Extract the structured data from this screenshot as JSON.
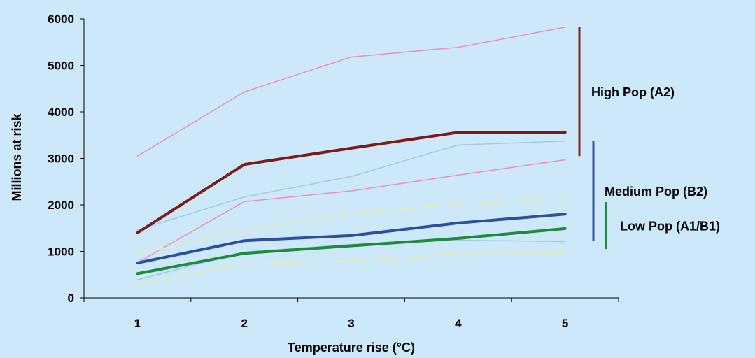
{
  "chart_data": {
    "type": "line",
    "xlabel": "Temperature rise (°C)",
    "ylabel": "Millions at risk",
    "x": [
      1,
      2,
      3,
      4,
      5
    ],
    "xlim": [
      0.5,
      5.5
    ],
    "ylim": [
      0,
      6000
    ],
    "yticks": [
      0,
      1000,
      2000,
      3000,
      4000,
      5000,
      6000
    ],
    "grid": false,
    "legend": "none",
    "series": [
      {
        "group": "high",
        "role": "bound",
        "color": "#f08cbc",
        "values": [
          3050,
          4430,
          5180,
          5390,
          5820
        ]
      },
      {
        "group": "high",
        "role": "bound",
        "color": "#f08cbc",
        "values": [
          760,
          2070,
          2300,
          2640,
          2970
        ]
      },
      {
        "group": "medium",
        "role": "bound",
        "color": "#a4c8e8",
        "values": [
          1460,
          2170,
          2610,
          3290,
          3370
        ]
      },
      {
        "group": "medium",
        "role": "bound",
        "color": "#a4c8e8",
        "values": [
          390,
          990,
          1150,
          1240,
          1210
        ]
      },
      {
        "group": "low",
        "role": "bound",
        "color": "#e8ecb0",
        "values": [
          940,
          1460,
          1820,
          2010,
          2140
        ]
      },
      {
        "group": "low",
        "role": "bound",
        "color": "#e8ecb0",
        "values": [
          300,
          730,
          800,
          950,
          970
        ]
      },
      {
        "group": "high",
        "role": "central",
        "color": "#7f1a1a",
        "values": [
          1400,
          2870,
          3220,
          3560,
          3560
        ]
      },
      {
        "group": "medium",
        "role": "central",
        "color": "#2e4f9e",
        "values": [
          750,
          1230,
          1340,
          1610,
          1800
        ]
      },
      {
        "group": "low",
        "role": "central",
        "color": "#1e8a3c",
        "values": [
          520,
          960,
          1120,
          1280,
          1490
        ]
      }
    ],
    "ranges": [
      {
        "label": "High Pop (A2)",
        "color": "#8b2020",
        "from": 3050,
        "to": 5820
      },
      {
        "label": "Medium Pop (B2)",
        "color": "#3050a0",
        "from": 1230,
        "to": 3370
      },
      {
        "label": "Low Pop (A1/B1)",
        "color": "#1e8a3c",
        "from": 1050,
        "to": 2060
      }
    ]
  }
}
